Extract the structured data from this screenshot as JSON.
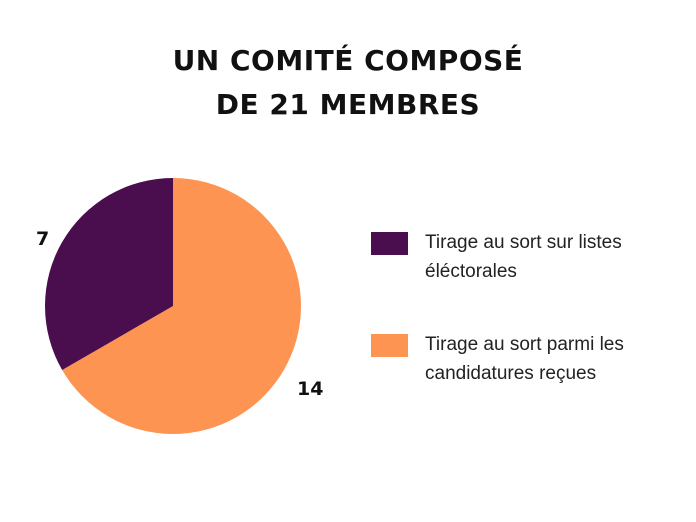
{
  "chart_data": {
    "type": "pie",
    "title_lines": [
      "UN COMITÉ COMPOSÉ",
      "DE 21 MEMBRES"
    ],
    "slices": [
      {
        "label": "Tirage au sort sur listes éléctorales",
        "label_lines": [
          "Tirage au sort sur listes",
          "éléctorales"
        ],
        "value": 7,
        "value_label": "7",
        "color": "#4a0d4d"
      },
      {
        "label": "Tirage au sort parmi les candidatures reçues",
        "label_lines": [
          "Tirage au sort parmi les",
          "candidatures reçues"
        ],
        "value": 14,
        "value_label": "14",
        "color": "#fe9451"
      }
    ],
    "legend_position": "right"
  }
}
